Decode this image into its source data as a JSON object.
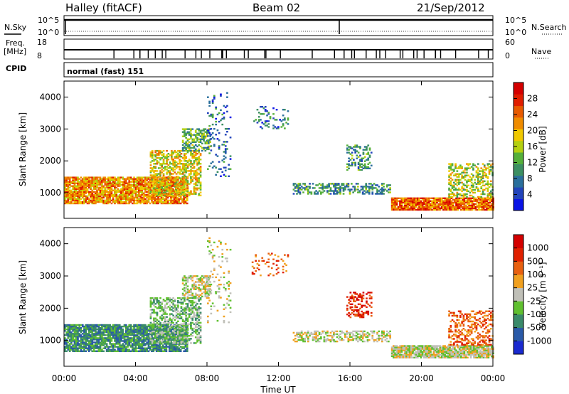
{
  "header": {
    "station": "Halley (fitACF)",
    "beam": "Beam 02",
    "date": "21/Sep/2012"
  },
  "strip_labels": {
    "nsky": "N.Sky",
    "freq_top": "Freq.",
    "freq_unit": "[MHz]",
    "cpid": "CPID",
    "nsearch": "N.Search",
    "nave": "Nave",
    "cpid_value": "normal (fast) 151"
  },
  "strip_ticks": {
    "noise_left": [
      "10^5",
      "10^0"
    ],
    "noise_right": [
      "10^5",
      "10^0"
    ],
    "freq_left": [
      "18",
      "8"
    ],
    "nave_right": [
      "60",
      "0"
    ]
  },
  "chart_data": [
    {
      "type": "heatmap",
      "panel": "power",
      "ylabel": "Slant Range [km]",
      "ylim": [
        200,
        4500
      ],
      "y_ticks": [
        "1000",
        "2000",
        "3000",
        "4000"
      ],
      "xlim": [
        0,
        24
      ],
      "x_ticks": [
        0,
        4,
        8,
        12,
        16,
        20,
        24
      ],
      "colorbar": {
        "label": "Power [dB]",
        "range": [
          0,
          32
        ],
        "tick_labels": [
          "4",
          "8",
          "12",
          "16",
          "20",
          "24",
          "28"
        ],
        "tick_values": [
          4,
          8,
          12,
          16,
          20,
          24,
          28
        ],
        "colors": [
          "#0a14e6",
          "#2244bb",
          "#2a6f9c",
          "#3c8f62",
          "#55b03a",
          "#b4d010",
          "#f0c800",
          "#f08c00",
          "#e85a00",
          "#e01e00",
          "#d40000"
        ]
      },
      "regions": [
        {
          "t0": 0.0,
          "t1": 6.9,
          "r0": 650,
          "r1": 1500,
          "level": 22,
          "density": 0.85
        },
        {
          "t0": 4.8,
          "t1": 7.6,
          "r0": 900,
          "r1": 2300,
          "level": 18,
          "density": 0.55
        },
        {
          "t0": 6.6,
          "t1": 8.2,
          "r0": 2300,
          "r1": 3000,
          "level": 12,
          "density": 0.55
        },
        {
          "t0": 8.0,
          "t1": 9.3,
          "r0": 1500,
          "r1": 4200,
          "level": 7,
          "density": 0.12
        },
        {
          "t0": 10.5,
          "t1": 12.5,
          "r0": 3000,
          "r1": 3700,
          "level": 7,
          "density": 0.15
        },
        {
          "t0": 12.8,
          "t1": 18.2,
          "r0": 950,
          "r1": 1300,
          "level": 10,
          "density": 0.45
        },
        {
          "t0": 15.8,
          "t1": 17.2,
          "r0": 1700,
          "r1": 2500,
          "level": 10,
          "density": 0.35
        },
        {
          "t0": 18.3,
          "t1": 24.0,
          "r0": 450,
          "r1": 850,
          "level": 24,
          "density": 0.9
        },
        {
          "t0": 21.5,
          "t1": 24.0,
          "r0": 850,
          "r1": 1900,
          "level": 16,
          "density": 0.45
        }
      ]
    },
    {
      "type": "heatmap",
      "panel": "velocity",
      "ylabel": "Slant Range [km]",
      "ylim": [
        200,
        4500
      ],
      "y_ticks": [
        "1000",
        "2000",
        "3000",
        "4000"
      ],
      "xlabel": "Time UT",
      "xlim": [
        0,
        24
      ],
      "x_ticks": [
        0,
        4,
        8,
        12,
        16,
        20,
        24
      ],
      "x_tick_labels": [
        "00:00",
        "04:00",
        "08:00",
        "12:00",
        "16:00",
        "20:00",
        "00:00"
      ],
      "colorbar": {
        "label": "Velocity [m s⁻¹]",
        "tick_labels": [
          "1000",
          "500",
          "100",
          "25",
          "-25",
          "-100",
          "-500",
          "-1000"
        ],
        "colors": [
          "#1a2ad0",
          "#2a5aa8",
          "#3a8a6a",
          "#60c030",
          "#c0c0b8",
          "#f0a020",
          "#e86010",
          "#e02000",
          "#d40000"
        ]
      },
      "regions": [
        {
          "t0": 0.0,
          "t1": 6.9,
          "r0": 650,
          "r1": 1500,
          "band": 2,
          "density": 0.85
        },
        {
          "t0": 4.8,
          "t1": 7.6,
          "r0": 900,
          "r1": 2300,
          "band": 3,
          "density": 0.55
        },
        {
          "t0": 6.6,
          "t1": 8.2,
          "r0": 2300,
          "r1": 3000,
          "band": 4,
          "density": 0.55
        },
        {
          "t0": 8.0,
          "t1": 9.3,
          "r0": 1500,
          "r1": 4200,
          "band": 4,
          "density": 0.12
        },
        {
          "t0": 10.5,
          "t1": 12.5,
          "r0": 3000,
          "r1": 3700,
          "band": 6,
          "density": 0.15
        },
        {
          "t0": 12.8,
          "t1": 18.2,
          "r0": 950,
          "r1": 1300,
          "band": 4,
          "density": 0.45
        },
        {
          "t0": 15.8,
          "t1": 17.2,
          "r0": 1700,
          "r1": 2500,
          "band": 7,
          "density": 0.35
        },
        {
          "t0": 18.3,
          "t1": 24.0,
          "r0": 450,
          "r1": 850,
          "band": 4,
          "density": 0.9
        },
        {
          "t0": 21.5,
          "t1": 24.0,
          "r0": 850,
          "r1": 1900,
          "band": 6,
          "density": 0.45
        }
      ]
    }
  ]
}
